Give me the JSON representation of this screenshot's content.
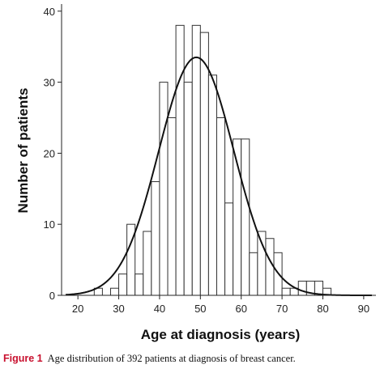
{
  "chart_data": {
    "type": "bar",
    "subtype": "histogram-with-normal-curve",
    "bin_width": 2,
    "bins": [
      {
        "start": 24,
        "count": 1
      },
      {
        "start": 28,
        "count": 1
      },
      {
        "start": 30,
        "count": 3
      },
      {
        "start": 32,
        "count": 10
      },
      {
        "start": 34,
        "count": 3
      },
      {
        "start": 36,
        "count": 9
      },
      {
        "start": 38,
        "count": 16
      },
      {
        "start": 40,
        "count": 30
      },
      {
        "start": 42,
        "count": 25
      },
      {
        "start": 44,
        "count": 38
      },
      {
        "start": 46,
        "count": 30
      },
      {
        "start": 48,
        "count": 38
      },
      {
        "start": 50,
        "count": 37
      },
      {
        "start": 52,
        "count": 31
      },
      {
        "start": 54,
        "count": 25
      },
      {
        "start": 56,
        "count": 13
      },
      {
        "start": 58,
        "count": 22
      },
      {
        "start": 60,
        "count": 22
      },
      {
        "start": 62,
        "count": 6
      },
      {
        "start": 64,
        "count": 9
      },
      {
        "start": 66,
        "count": 8
      },
      {
        "start": 68,
        "count": 6
      },
      {
        "start": 70,
        "count": 1
      },
      {
        "start": 72,
        "count": 1
      },
      {
        "start": 74,
        "count": 2
      },
      {
        "start": 76,
        "count": 2
      },
      {
        "start": 78,
        "count": 2
      },
      {
        "start": 80,
        "count": 1
      }
    ],
    "normal_curve": {
      "peak_x": 49,
      "peak_y": 33.5,
      "sd": 9.2
    },
    "xlabel": "Age at diagnosis (years)",
    "ylabel": "Number of patients",
    "xlim": [
      16,
      93
    ],
    "ylim": [
      0,
      41
    ],
    "xticks": [
      "20",
      "30",
      "40",
      "50",
      "60",
      "70",
      "80",
      "90"
    ],
    "yticks": [
      "0",
      "10",
      "20",
      "30",
      "40"
    ],
    "grid": false,
    "legend": "none"
  },
  "caption": {
    "label": "Figure 1",
    "text": "Age distribution of 392 patients at diagnosis of breast cancer."
  }
}
